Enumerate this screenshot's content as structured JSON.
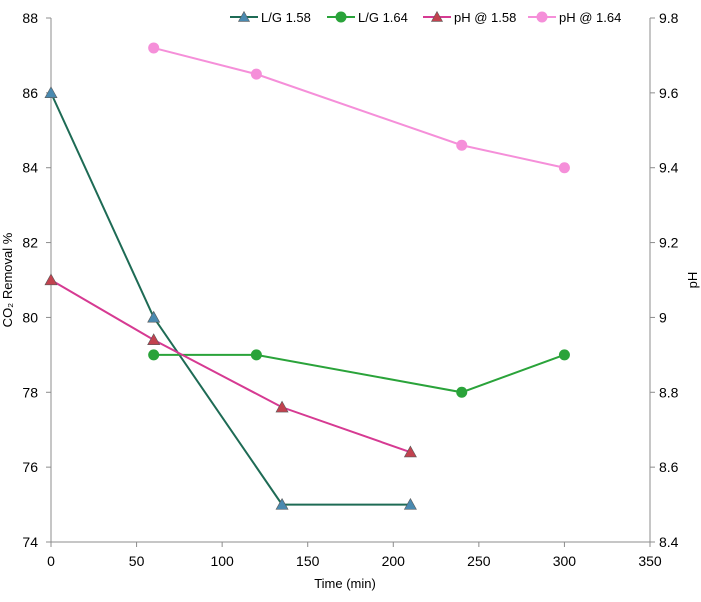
{
  "chart_data": {
    "type": "line",
    "title": "",
    "xlabel": "Time (min)",
    "ylabel": "CO₂ Removal %",
    "y2label": "pH",
    "xlim": [
      0,
      350
    ],
    "ylim": [
      74,
      88
    ],
    "y2lim": [
      8.4,
      9.8
    ],
    "x_ticks": [
      "0",
      "50",
      "100",
      "150",
      "200",
      "250",
      "300",
      "350"
    ],
    "y_ticks": [
      "74",
      "76",
      "78",
      "80",
      "82",
      "84",
      "86",
      "88"
    ],
    "y2_ticks": [
      "8.4",
      "8.6",
      "8.8",
      "9",
      "9.2",
      "9.4",
      "9.6",
      "9.8"
    ],
    "grid": false,
    "legend_position": "top",
    "series": [
      {
        "name": "L/G 1.58",
        "axis": "left",
        "marker": "triangle",
        "line_color": "#1e6b55",
        "marker_color": "#4a8ab0",
        "x": [
          0,
          60,
          135,
          210
        ],
        "y": [
          86,
          80,
          75,
          75
        ]
      },
      {
        "name": "L/G 1.64",
        "axis": "left",
        "marker": "circle",
        "line_color": "#2aa33a",
        "marker_color": "#2aa33a",
        "x": [
          60,
          120,
          240,
          300
        ],
        "y": [
          79,
          79,
          78,
          79
        ]
      },
      {
        "name": "pH @ 1.58",
        "axis": "right",
        "marker": "triangle",
        "line_color": "#d63a92",
        "marker_color": "#c2424f",
        "x": [
          0,
          60,
          135,
          210
        ],
        "y": [
          9.1,
          8.94,
          8.76,
          8.64
        ]
      },
      {
        "name": "pH @ 1.64",
        "axis": "right",
        "marker": "circle",
        "line_color": "#f58fd9",
        "marker_color": "#f58fd9",
        "x": [
          60,
          120,
          240,
          300
        ],
        "y": [
          9.72,
          9.65,
          9.46,
          9.4
        ]
      }
    ]
  }
}
